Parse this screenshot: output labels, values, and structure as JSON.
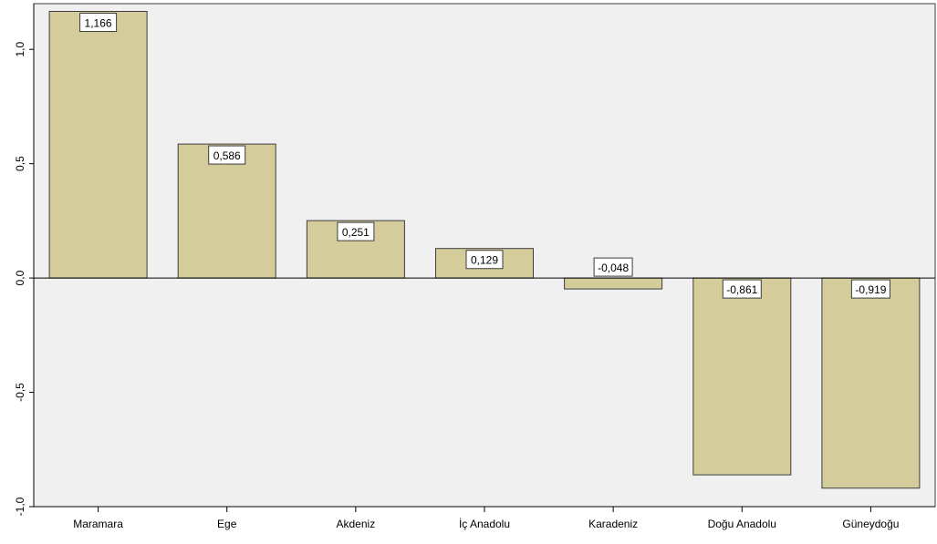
{
  "chart_data": {
    "type": "bar",
    "categories": [
      "Maramara",
      "Ege",
      "Akdeniz",
      "İç Anadolu",
      "Karadeniz",
      "Doğu Anadolu",
      "Güneydoğu"
    ],
    "values": [
      1.166,
      0.586,
      0.251,
      0.129,
      -0.048,
      -0.861,
      -0.919
    ],
    "data_labels": [
      "1,166",
      "0,586",
      "0,251",
      "0,129",
      "-0,048",
      "-0,861",
      "-0,919"
    ],
    "y_ticks": [
      1.0,
      0.5,
      0.0,
      -0.5,
      -1.0
    ],
    "y_tick_labels": [
      "1,0",
      "0,5",
      "0,0",
      "-0,5",
      "-1,0"
    ],
    "ylim": [
      -1.0,
      1.2
    ],
    "title": "",
    "xlabel": "",
    "ylabel": "",
    "grid": false,
    "legend": "none",
    "colors": {
      "bar_fill": "#d5cc9b",
      "bar_stroke": "#3c3c3c",
      "plot_bg": "#f0f0f0",
      "axis": "#000000",
      "label_box": "#ffffff"
    }
  }
}
